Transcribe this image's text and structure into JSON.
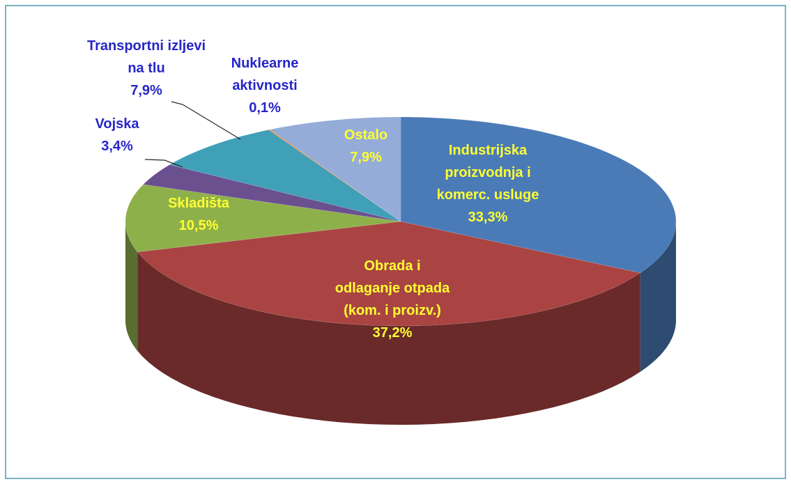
{
  "chart_data": {
    "type": "pie3d",
    "categories": [
      "Industrijska\nproizvodnja i\nkomerc. usluge",
      "Obrada i\nodlaganje otpada\n(kom. i proizv.)",
      "Skladišta",
      "Vojska",
      "Transportni izljevi\nna tlu",
      "Nuklearne\naktivnosti",
      "Ostalo"
    ],
    "values": [
      33.3,
      37.2,
      10.5,
      3.4,
      7.9,
      0.1,
      7.9
    ],
    "value_labels": [
      "33,3%",
      "37,2%",
      "10,5%",
      "3,4%",
      "7,9%",
      "0,1%",
      "7,9%"
    ],
    "colors": [
      "#4a7bb7",
      "#a94442",
      "#8eb04b",
      "#6b5090",
      "#40a0b8",
      "#f08a3c",
      "#95acd8"
    ]
  }
}
